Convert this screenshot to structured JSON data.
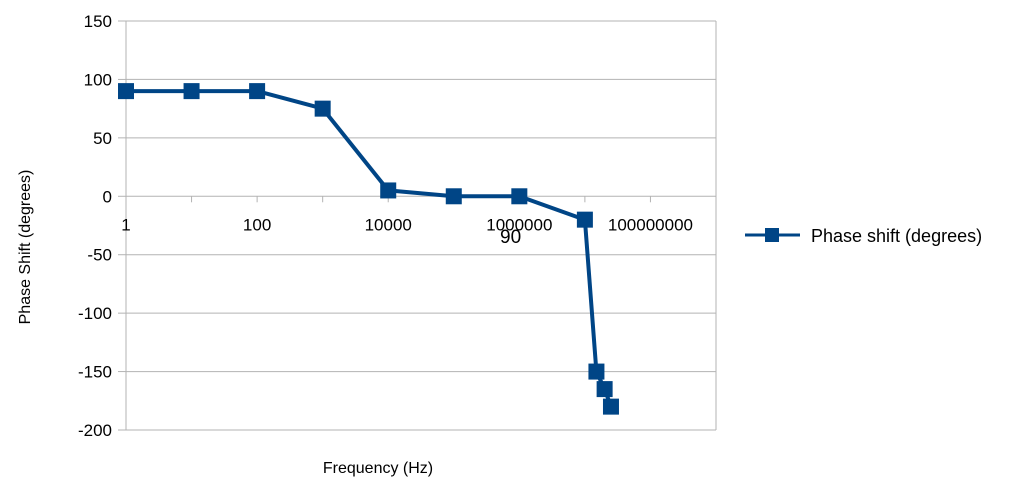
{
  "chart_data": {
    "type": "line",
    "title": "",
    "xlabel": "Frequency (Hz)",
    "ylabel": "Phase Shift (degrees)",
    "x_scale": "log",
    "xlim": [
      1,
      1000000000
    ],
    "ylim": [
      -200,
      150
    ],
    "y_ticks": [
      "150",
      "100",
      "50",
      "0",
      "-50",
      "-100",
      "-150",
      "-200"
    ],
    "x_ticks": [
      "1",
      "100",
      "10000",
      "1000000",
      "100000000"
    ],
    "grid": true,
    "legend_position": "right",
    "annotation": "90",
    "series": [
      {
        "name": "Phase shift (degrees)",
        "color": "#004586",
        "marker": "square",
        "x": [
          1,
          10,
          100,
          1000,
          10000,
          100000,
          1000000,
          10000000,
          15000000,
          20000000,
          25000000
        ],
        "y": [
          90,
          90,
          90,
          75,
          5,
          0,
          0,
          -20,
          -150,
          -165,
          -180
        ]
      }
    ]
  }
}
